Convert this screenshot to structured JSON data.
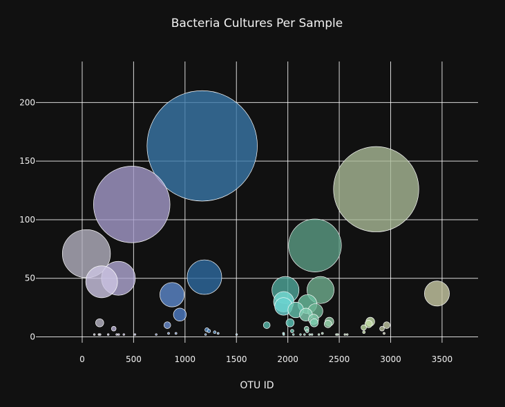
{
  "chart_data": {
    "type": "scatter",
    "title": "Bacteria Cultures Per Sample",
    "xlabel": "OTU ID",
    "ylabel": "",
    "xlim": [
      -450,
      3850
    ],
    "ylim": [
      -5,
      235
    ],
    "xticks": [
      0,
      500,
      1000,
      1500,
      2000,
      2500,
      3000,
      3500
    ],
    "yticks": [
      0,
      50,
      100,
      150,
      200
    ],
    "grid": true,
    "legend": "none",
    "marker_size_encoding": "sample value",
    "marker_color_encoding": "otu id",
    "points": [
      {
        "x": 1167,
        "y": 163,
        "size": 163,
        "color": "#3a77a8"
      },
      {
        "x": 2859,
        "y": 126,
        "size": 126,
        "color": "#a9b996"
      },
      {
        "x": 482,
        "y": 113,
        "size": 113,
        "color": "#a49ac9"
      },
      {
        "x": 2264,
        "y": 78,
        "size": 78,
        "color": "#5b9c84"
      },
      {
        "x": 41,
        "y": 71,
        "size": 71,
        "color": "#b3b0bf"
      },
      {
        "x": 1189,
        "y": 51,
        "size": 51,
        "color": "#2e6aa0"
      },
      {
        "x": 352,
        "y": 50,
        "size": 50,
        "color": "#b0a8d3"
      },
      {
        "x": 189,
        "y": 47,
        "size": 47,
        "color": "#cdc6e4"
      },
      {
        "x": 2318,
        "y": 40,
        "size": 40,
        "color": "#6fae8f"
      },
      {
        "x": 1977,
        "y": 40,
        "size": 40,
        "color": "#4fa69a"
      },
      {
        "x": 3450,
        "y": 37,
        "size": 37,
        "color": "#c8c9a4"
      },
      {
        "x": 874,
        "y": 36,
        "size": 36,
        "color": "#5d88cc"
      },
      {
        "x": 1960,
        "y": 30,
        "size": 30,
        "color": "#76dcd4"
      },
      {
        "x": 2191,
        "y": 28,
        "size": 28,
        "color": "#6cc0a0"
      },
      {
        "x": 1958,
        "y": 26,
        "size": 26,
        "color": "#6ad2cf"
      },
      {
        "x": 2077,
        "y": 23,
        "size": 23,
        "color": "#64c1ad"
      },
      {
        "x": 2268,
        "y": 22,
        "size": 22,
        "color": "#6bb392"
      },
      {
        "x": 950,
        "y": 19,
        "size": 19,
        "color": "#4f7dc6"
      },
      {
        "x": 2176,
        "y": 19,
        "size": 19,
        "color": "#82cdb2"
      },
      {
        "x": 2250,
        "y": 15,
        "size": 15,
        "color": "#7fc6a8"
      },
      {
        "x": 2404,
        "y": 13,
        "size": 13,
        "color": "#90c8a3"
      },
      {
        "x": 2802,
        "y": 13,
        "size": 13,
        "color": "#c5dfab"
      },
      {
        "x": 170,
        "y": 12,
        "size": 12,
        "color": "#b8b5c6"
      },
      {
        "x": 2256,
        "y": 12,
        "size": 12,
        "color": "#7dd0b0"
      },
      {
        "x": 2022,
        "y": 12,
        "size": 12,
        "color": "#5bc5b8"
      },
      {
        "x": 2390,
        "y": 11,
        "size": 11,
        "color": "#8ec5a1"
      },
      {
        "x": 2786,
        "y": 11,
        "size": 11,
        "color": "#c2dba6"
      },
      {
        "x": 1795,
        "y": 10,
        "size": 10,
        "color": "#5abcae"
      },
      {
        "x": 828,
        "y": 10,
        "size": 10,
        "color": "#6b8fd0"
      },
      {
        "x": 2961,
        "y": 10,
        "size": 10,
        "color": "#c1c7a2"
      },
      {
        "x": 2738,
        "y": 8,
        "size": 8,
        "color": "#bed9a3"
      },
      {
        "x": 307,
        "y": 7,
        "size": 7,
        "color": "#b5acd2"
      },
      {
        "x": 2916,
        "y": 7,
        "size": 7,
        "color": "#b9c19e"
      },
      {
        "x": 2182,
        "y": 7,
        "size": 7,
        "color": "#7ec5a8"
      },
      {
        "x": 1213,
        "y": 6,
        "size": 6,
        "color": "#4983c0"
      },
      {
        "x": 2188,
        "y": 5,
        "size": 5,
        "color": "#85cbb0"
      },
      {
        "x": 1232,
        "y": 5,
        "size": 5,
        "color": "#4d8ac4"
      },
      {
        "x": 2042,
        "y": 5,
        "size": 5,
        "color": "#66c4b2"
      },
      {
        "x": 2740,
        "y": 4,
        "size": 4,
        "color": "#c8e3ad"
      },
      {
        "x": 1289,
        "y": 4,
        "size": 4,
        "color": "#5994c8"
      },
      {
        "x": 1958,
        "y": 3,
        "size": 3,
        "color": "#6fd5cd"
      },
      {
        "x": 840,
        "y": 3,
        "size": 3,
        "color": "#6a8ed0"
      },
      {
        "x": 912,
        "y": 3,
        "size": 3,
        "color": "#6587cc"
      },
      {
        "x": 1322,
        "y": 3,
        "size": 3,
        "color": "#6d9dcd"
      },
      {
        "x": 2336,
        "y": 3,
        "size": 3,
        "color": "#95c9a4"
      },
      {
        "x": 2936,
        "y": 3,
        "size": 3,
        "color": "#bec4a0"
      },
      {
        "x": 1200,
        "y": 2,
        "size": 2,
        "color": "#4b86c2"
      },
      {
        "x": 1960,
        "y": 2,
        "size": 2,
        "color": "#6ed4cd"
      },
      {
        "x": 2302,
        "y": 2,
        "size": 2,
        "color": "#8cc7a2"
      },
      {
        "x": 2472,
        "y": 2,
        "size": 2,
        "color": "#a2cfa7"
      },
      {
        "x": 2485,
        "y": 2,
        "size": 2,
        "color": "#a4d1a8"
      },
      {
        "x": 2555,
        "y": 2,
        "size": 2,
        "color": "#aed5a8"
      },
      {
        "x": 2578,
        "y": 2,
        "size": 2,
        "color": "#b1d6a8"
      },
      {
        "x": 1502,
        "y": 2,
        "size": 2,
        "color": "#7fb1cf"
      },
      {
        "x": 118,
        "y": 2,
        "size": 2,
        "color": "#b6b3c5"
      },
      {
        "x": 163,
        "y": 2,
        "size": 2,
        "color": "#b9b6c7"
      },
      {
        "x": 174,
        "y": 2,
        "size": 2,
        "color": "#bab7c8"
      },
      {
        "x": 253,
        "y": 2,
        "size": 2,
        "color": "#bcb5d4"
      },
      {
        "x": 336,
        "y": 2,
        "size": 2,
        "color": "#b3abd2"
      },
      {
        "x": 355,
        "y": 2,
        "size": 2,
        "color": "#b1a9d3"
      },
      {
        "x": 405,
        "y": 2,
        "size": 2,
        "color": "#aba3cf"
      },
      {
        "x": 513,
        "y": 2,
        "size": 2,
        "color": "#9fa0d0"
      },
      {
        "x": 720,
        "y": 2,
        "size": 2,
        "color": "#7b92d2"
      },
      {
        "x": 2054,
        "y": 2,
        "size": 2,
        "color": "#60c2b3"
      },
      {
        "x": 2123,
        "y": 2,
        "size": 2,
        "color": "#70c3ab"
      },
      {
        "x": 2162,
        "y": 2,
        "size": 2,
        "color": "#78c5a9"
      },
      {
        "x": 2213,
        "y": 2,
        "size": 2,
        "color": "#7bc6a8"
      },
      {
        "x": 2235,
        "y": 2,
        "size": 2,
        "color": "#7cc7a8"
      }
    ]
  }
}
